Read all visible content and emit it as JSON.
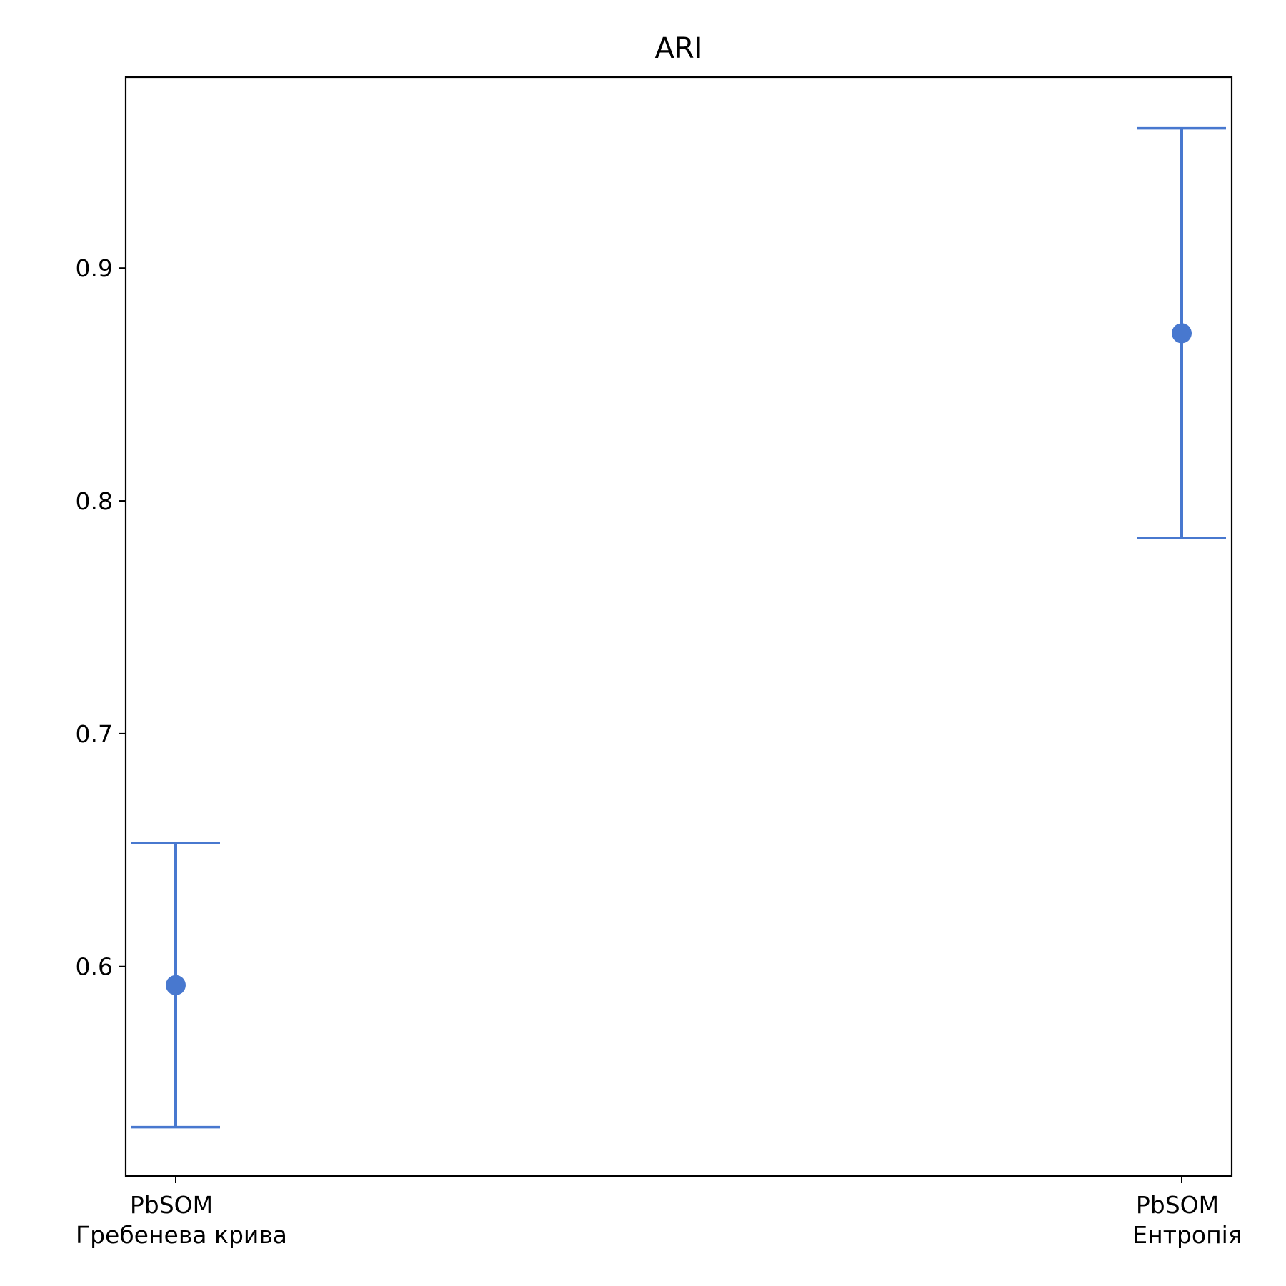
{
  "chart_data": {
    "type": "errorbar",
    "title": "ARI",
    "xlabel": "",
    "ylabel": "",
    "categories": [
      [
        "PbSOM",
        "Гребенева крива"
      ],
      [
        "PbSOM",
        "Ентропія"
      ]
    ],
    "points": [
      {
        "mean": 0.592,
        "lower": 0.531,
        "upper": 0.653
      },
      {
        "mean": 0.872,
        "lower": 0.784,
        "upper": 0.96
      }
    ],
    "yticks": [
      "0.6",
      "0.7",
      "0.8",
      "0.9"
    ],
    "ylim": [
      0.51,
      0.982
    ],
    "grid": false,
    "color": "#4878cf"
  }
}
